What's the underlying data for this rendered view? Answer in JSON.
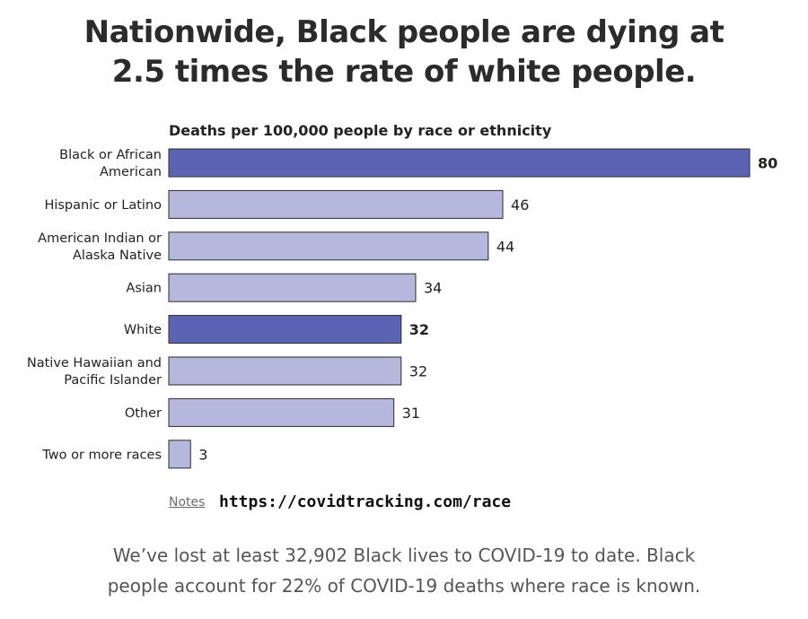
{
  "title": {
    "line1": "Nationwide, Black people are dying at",
    "line2": "2.5 times the rate of white people."
  },
  "chart_data": {
    "type": "bar",
    "orientation": "horizontal",
    "title": "Deaths per 100,000 people by race or ethnicity",
    "categories": [
      "Black or African American",
      "Hispanic or Latino",
      "American Indian or Alaska Native",
      "Asian",
      "White",
      "Native Hawaiian and Pacific Islander",
      "Other",
      "Two or more races"
    ],
    "category_lines": [
      [
        "Black or African",
        "American"
      ],
      [
        "Hispanic or Latino"
      ],
      [
        "American Indian or",
        "Alaska Native"
      ],
      [
        "Asian"
      ],
      [
        "White"
      ],
      [
        "Native Hawaiian and",
        "Pacific Islander"
      ],
      [
        "Other"
      ],
      [
        "Two or more races"
      ]
    ],
    "values": [
      80,
      46,
      44,
      34,
      32,
      32,
      31,
      3
    ],
    "highlighted": [
      true,
      false,
      false,
      false,
      true,
      false,
      false,
      false
    ],
    "xlim": [
      0,
      80
    ],
    "grid": false,
    "colors": {
      "highlight": "#5b63b5",
      "default": "#b5b8dc",
      "border": "#2a2a2a"
    }
  },
  "notes_label": "Notes",
  "source_url": "https://covidtracking.com/race",
  "footer": {
    "line1": "We’ve lost at least 32,902 Black lives to COVID-19 to date. Black",
    "line2": "people account for 22% of COVID-19 deaths where race is known."
  }
}
